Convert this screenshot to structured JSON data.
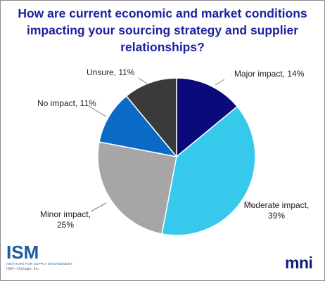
{
  "chart_data": {
    "type": "pie",
    "title": "How are current economic and market conditions impacting your sourcing strategy and supplier relationships?",
    "slices": [
      {
        "label": "Major impact, 14%",
        "value": 14,
        "color": "#0a0a7a"
      },
      {
        "label": "Moderate impact, 39%",
        "value": 39,
        "color": "#36c9ec"
      },
      {
        "label": "Minor impact, 25%",
        "value": 25,
        "color": "#a6a6a6"
      },
      {
        "label": "No impact, 11%",
        "value": 11,
        "color": "#0a6ac6"
      },
      {
        "label": "Unsure, 11%",
        "value": 11,
        "color": "#3a3a3a"
      }
    ],
    "legend": "none"
  },
  "logos": {
    "ism_mark": "ISM",
    "ism_name": "INSTITUTE FOR SUPPLY MANAGEMENT",
    "ism_footer": "ISM—Chicago, Inc.",
    "mni": "mni"
  }
}
